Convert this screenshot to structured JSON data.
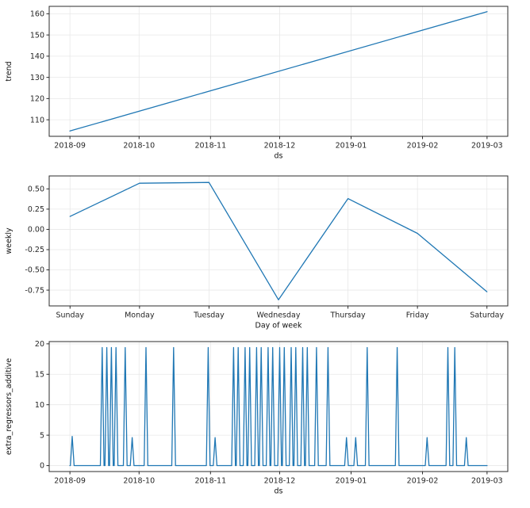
{
  "figure": {
    "background": "#ffffff",
    "spine_color": "#2b2b2b",
    "grid_color": "#e8e8e8",
    "accent_line_color": "#1f77b4"
  },
  "chart_data": [
    {
      "type": "line",
      "series_name": "trend",
      "title": "",
      "xlabel": "ds",
      "ylabel": "trend",
      "xlim": [
        -9,
        190
      ],
      "ylim": [
        102.2,
        163.5
      ],
      "grid": true,
      "legend": "none",
      "line_color": "#1f77b4",
      "xticks": {
        "positions": [
          0,
          30,
          61,
          91,
          122,
          153,
          181
        ],
        "labels": [
          "2018-09",
          "2018-10",
          "2018-11",
          "2018-12",
          "2019-01",
          "2019-02",
          "2019-03"
        ]
      },
      "yticks": {
        "positions": [
          110,
          120,
          130,
          140,
          150,
          160
        ],
        "labels": [
          "110",
          "120",
          "130",
          "140",
          "150",
          "160"
        ]
      },
      "points": [
        [
          0,
          104.7
        ],
        [
          181,
          161.0
        ]
      ]
    },
    {
      "type": "line",
      "series_name": "weekly",
      "title": "",
      "xlabel": "Day of week",
      "ylabel": "weekly",
      "xlim": [
        -0.3,
        6.3
      ],
      "ylim": [
        -0.945,
        0.66
      ],
      "grid": true,
      "legend": "none",
      "line_color": "#1f77b4",
      "categories": [
        "Sunday",
        "Monday",
        "Tuesday",
        "Wednesday",
        "Thursday",
        "Friday",
        "Saturday"
      ],
      "values": [
        0.16,
        0.57,
        0.58,
        -0.87,
        0.38,
        -0.05,
        -0.77
      ],
      "yticks": {
        "positions": [
          0.5,
          0.25,
          0.0,
          -0.25,
          -0.5,
          -0.75
        ],
        "labels": [
          "0.50",
          "0.25",
          "0.00",
          "-0.25",
          "-0.50",
          "-0.75"
        ]
      }
    },
    {
      "type": "line",
      "series_name": "extra_regressors_additive",
      "title": "",
      "xlabel": "ds",
      "ylabel": "extra_regressors_additive",
      "xlim": [
        -9,
        190
      ],
      "ylim": [
        -0.97,
        20.37
      ],
      "grid": true,
      "legend": "none",
      "line_color": "#1f77b4",
      "xticks": {
        "positions": [
          0,
          30,
          61,
          91,
          122,
          153,
          181
        ],
        "labels": [
          "2018-09",
          "2018-10",
          "2018-11",
          "2018-12",
          "2019-01",
          "2019-02",
          "2019-03"
        ]
      },
      "yticks": {
        "positions": [
          0,
          5,
          10,
          15,
          20
        ],
        "labels": [
          "0",
          "5",
          "10",
          "15",
          "20"
        ]
      },
      "baseline": 0,
      "x_start": 0,
      "x_end": 181,
      "spike_half_width": 0.8,
      "spikes": [
        [
          1,
          4.8
        ],
        [
          14,
          19.4
        ],
        [
          16,
          19.4
        ],
        [
          18,
          19.4
        ],
        [
          20,
          19.4
        ],
        [
          24,
          19.4
        ],
        [
          27,
          4.6
        ],
        [
          33,
          19.4
        ],
        [
          45,
          19.4
        ],
        [
          60,
          19.4
        ],
        [
          63,
          4.6
        ],
        [
          71,
          19.4
        ],
        [
          73,
          19.4
        ],
        [
          76,
          19.4
        ],
        [
          78,
          19.4
        ],
        [
          81,
          19.4
        ],
        [
          83,
          19.4
        ],
        [
          86,
          19.4
        ],
        [
          88,
          19.4
        ],
        [
          91,
          19.4
        ],
        [
          93,
          19.4
        ],
        [
          96,
          19.4
        ],
        [
          98,
          19.4
        ],
        [
          101,
          19.4
        ],
        [
          103,
          19.4
        ],
        [
          107,
          19.4
        ],
        [
          112,
          19.4
        ],
        [
          120,
          4.6
        ],
        [
          124,
          4.6
        ],
        [
          129,
          19.4
        ],
        [
          142,
          19.4
        ],
        [
          155,
          4.6
        ],
        [
          164,
          19.4
        ],
        [
          167,
          19.4
        ],
        [
          172,
          4.6
        ]
      ]
    }
  ]
}
